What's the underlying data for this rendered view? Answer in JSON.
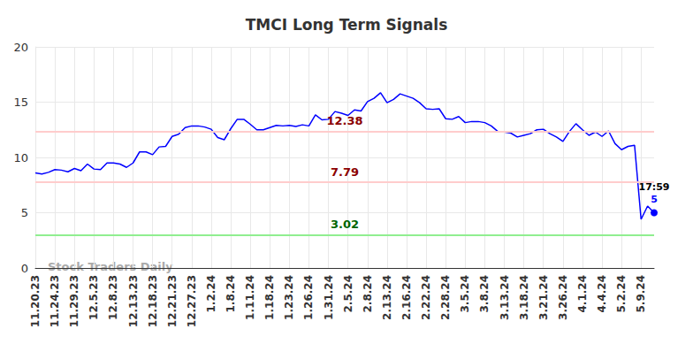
{
  "chart_data": {
    "type": "line",
    "title": "TMCI Long Term Signals",
    "categories": [
      "11.20.23",
      null,
      null,
      "11.24.23",
      null,
      null,
      "11.29.23",
      null,
      null,
      "12.5.23",
      null,
      null,
      "12.8.23",
      null,
      null,
      "12.13.23",
      null,
      null,
      "12.18.23",
      null,
      null,
      "12.21.23",
      null,
      null,
      "12.27.23",
      null,
      null,
      "1.2.24",
      null,
      null,
      "1.8.24",
      null,
      null,
      "1.11.24",
      null,
      null,
      "1.18.24",
      null,
      null,
      "1.23.24",
      null,
      null,
      "1.26.24",
      null,
      null,
      "1.31.24",
      null,
      null,
      "2.5.24",
      null,
      null,
      "2.8.24",
      null,
      null,
      "2.13.24",
      null,
      null,
      "2.16.24",
      null,
      null,
      "2.22.24",
      null,
      null,
      "2.28.24",
      null,
      null,
      "3.5.24",
      null,
      null,
      "3.8.24",
      null,
      null,
      "3.13.24",
      null,
      null,
      "3.18.24",
      null,
      null,
      "3.21.24",
      null,
      null,
      "3.26.24",
      null,
      null,
      "4.1.24",
      null,
      null,
      "4.4.24",
      null,
      null,
      "5.2.24",
      null,
      null,
      "5.9.24",
      null,
      null
    ],
    "values": [
      8.6,
      8.5,
      8.65,
      8.9,
      8.85,
      8.7,
      9.0,
      8.8,
      9.4,
      8.95,
      8.9,
      9.5,
      9.5,
      9.4,
      9.1,
      9.5,
      10.5,
      10.5,
      10.25,
      10.95,
      11.0,
      11.9,
      12.1,
      12.7,
      12.85,
      12.85,
      12.75,
      12.55,
      11.8,
      11.6,
      12.6,
      13.45,
      13.45,
      13.0,
      12.5,
      12.5,
      12.7,
      12.9,
      12.85,
      12.9,
      12.8,
      12.95,
      12.85,
      13.85,
      13.4,
      13.45,
      14.15,
      14.0,
      13.8,
      14.3,
      14.2,
      15.05,
      15.35,
      15.85,
      14.95,
      15.25,
      15.75,
      15.55,
      15.35,
      14.95,
      14.4,
      14.35,
      14.4,
      13.5,
      13.45,
      13.7,
      13.15,
      13.25,
      13.25,
      13.15,
      12.85,
      12.35,
      12.3,
      12.2,
      11.85,
      12.0,
      12.15,
      12.5,
      12.55,
      12.15,
      11.85,
      11.45,
      12.35,
      13.05,
      12.5,
      12.0,
      12.3,
      11.9,
      12.4,
      11.25,
      10.7,
      11.0,
      11.1,
      4.4,
      5.6,
      5
    ],
    "color": "#0000ff",
    "ylim": [
      0,
      20
    ],
    "yticks": [
      0,
      5,
      10,
      15,
      20
    ],
    "grid": true,
    "reference_lines": [
      {
        "value": 12.38,
        "color": "#ffcccc"
      },
      {
        "value": 7.79,
        "color": "#ffcccc"
      },
      {
        "value": 3.02,
        "color": "#90ee90"
      }
    ],
    "annotations": [
      {
        "text": "17:59"
      }
    ],
    "watermark": "Stock Traders Daily"
  }
}
